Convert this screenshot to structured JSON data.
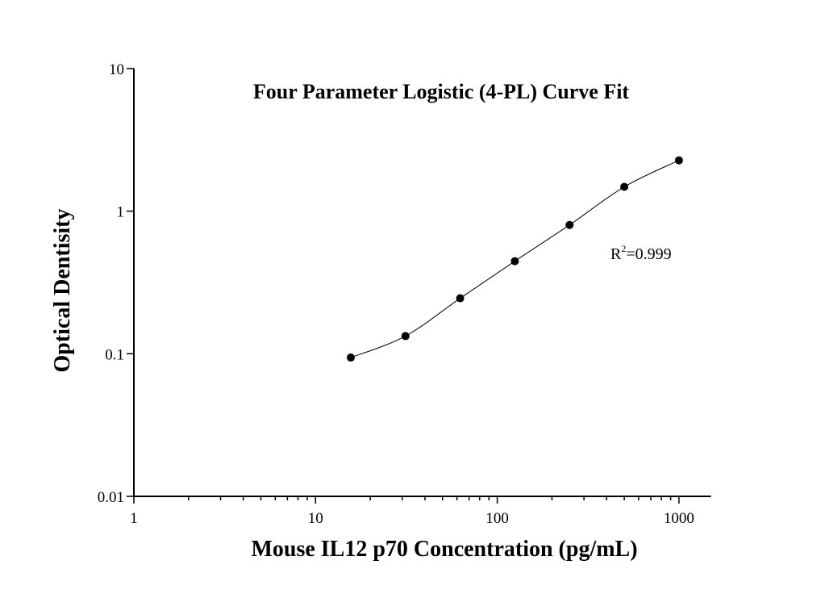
{
  "chart_data": {
    "type": "scatter",
    "title": "Four Parameter Logistic (4-PL) Curve Fit",
    "xlabel": "Mouse IL12 p70 Concentration (pg/mL)",
    "ylabel": "Optical Dentisity",
    "xscale": "log",
    "yscale": "log",
    "xlim": [
      1,
      1500
    ],
    "ylim": [
      0.01,
      10
    ],
    "xticks": [
      "1",
      "10",
      "100",
      "1000"
    ],
    "yticks": [
      "0.01",
      "0.1",
      "1",
      "10"
    ],
    "grid": false,
    "annotation": {
      "r_label": "R",
      "r_sup": "2",
      "r_value": "=0.999"
    },
    "series": [
      {
        "x": [
          15.625,
          31.25,
          62.5,
          125,
          250,
          500,
          1000
        ],
        "y": [
          0.094,
          0.133,
          0.245,
          0.446,
          0.8,
          1.48,
          2.27
        ],
        "fit": "4-PL"
      }
    ],
    "colors": {
      "marker": "#000000",
      "line": "#000000"
    }
  }
}
